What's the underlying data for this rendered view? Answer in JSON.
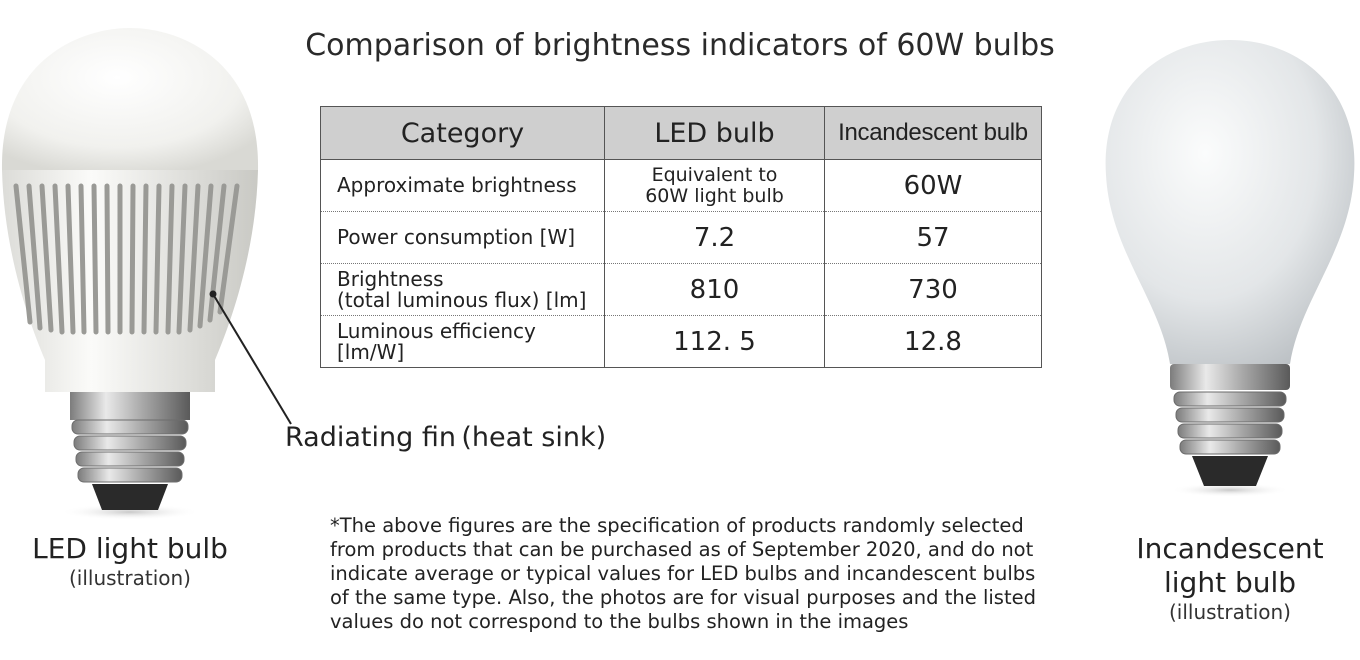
{
  "title": "Comparison of brightness indicators of 60W bulbs",
  "table": {
    "headers": [
      "Category",
      "LED bulb",
      "Incandescent bulb"
    ],
    "rows": [
      {
        "category": "Approximate brightness",
        "led": "Equivalent to\n60W light bulb",
        "incandescent": "60W"
      },
      {
        "category": "Power consumption [W]",
        "led": "7.2",
        "incandescent": "57"
      },
      {
        "category": "Brightness\n(total luminous flux) [lm]",
        "led": "810",
        "incandescent": "730"
      },
      {
        "category": "Luminous efficiency [lm/W]",
        "led": "112. 5",
        "incandescent": "12.8"
      }
    ]
  },
  "fin_label": "Radiating fin (heat sink)",
  "led_caption": {
    "main": "LED light bulb",
    "sub": "(illustration)"
  },
  "incandescent_caption": {
    "main": "Incandescent\nlight bulb",
    "sub": "(illustration)"
  },
  "note": "*The above figures are the specification of products randomly selected from products that can be purchased as of September 2020, and do not indicate average or typical values for LED bulbs and incandescent bulbs of the same type. Also, the photos are for visual purposes and the listed values do not correspond to the bulbs shown in the images"
}
